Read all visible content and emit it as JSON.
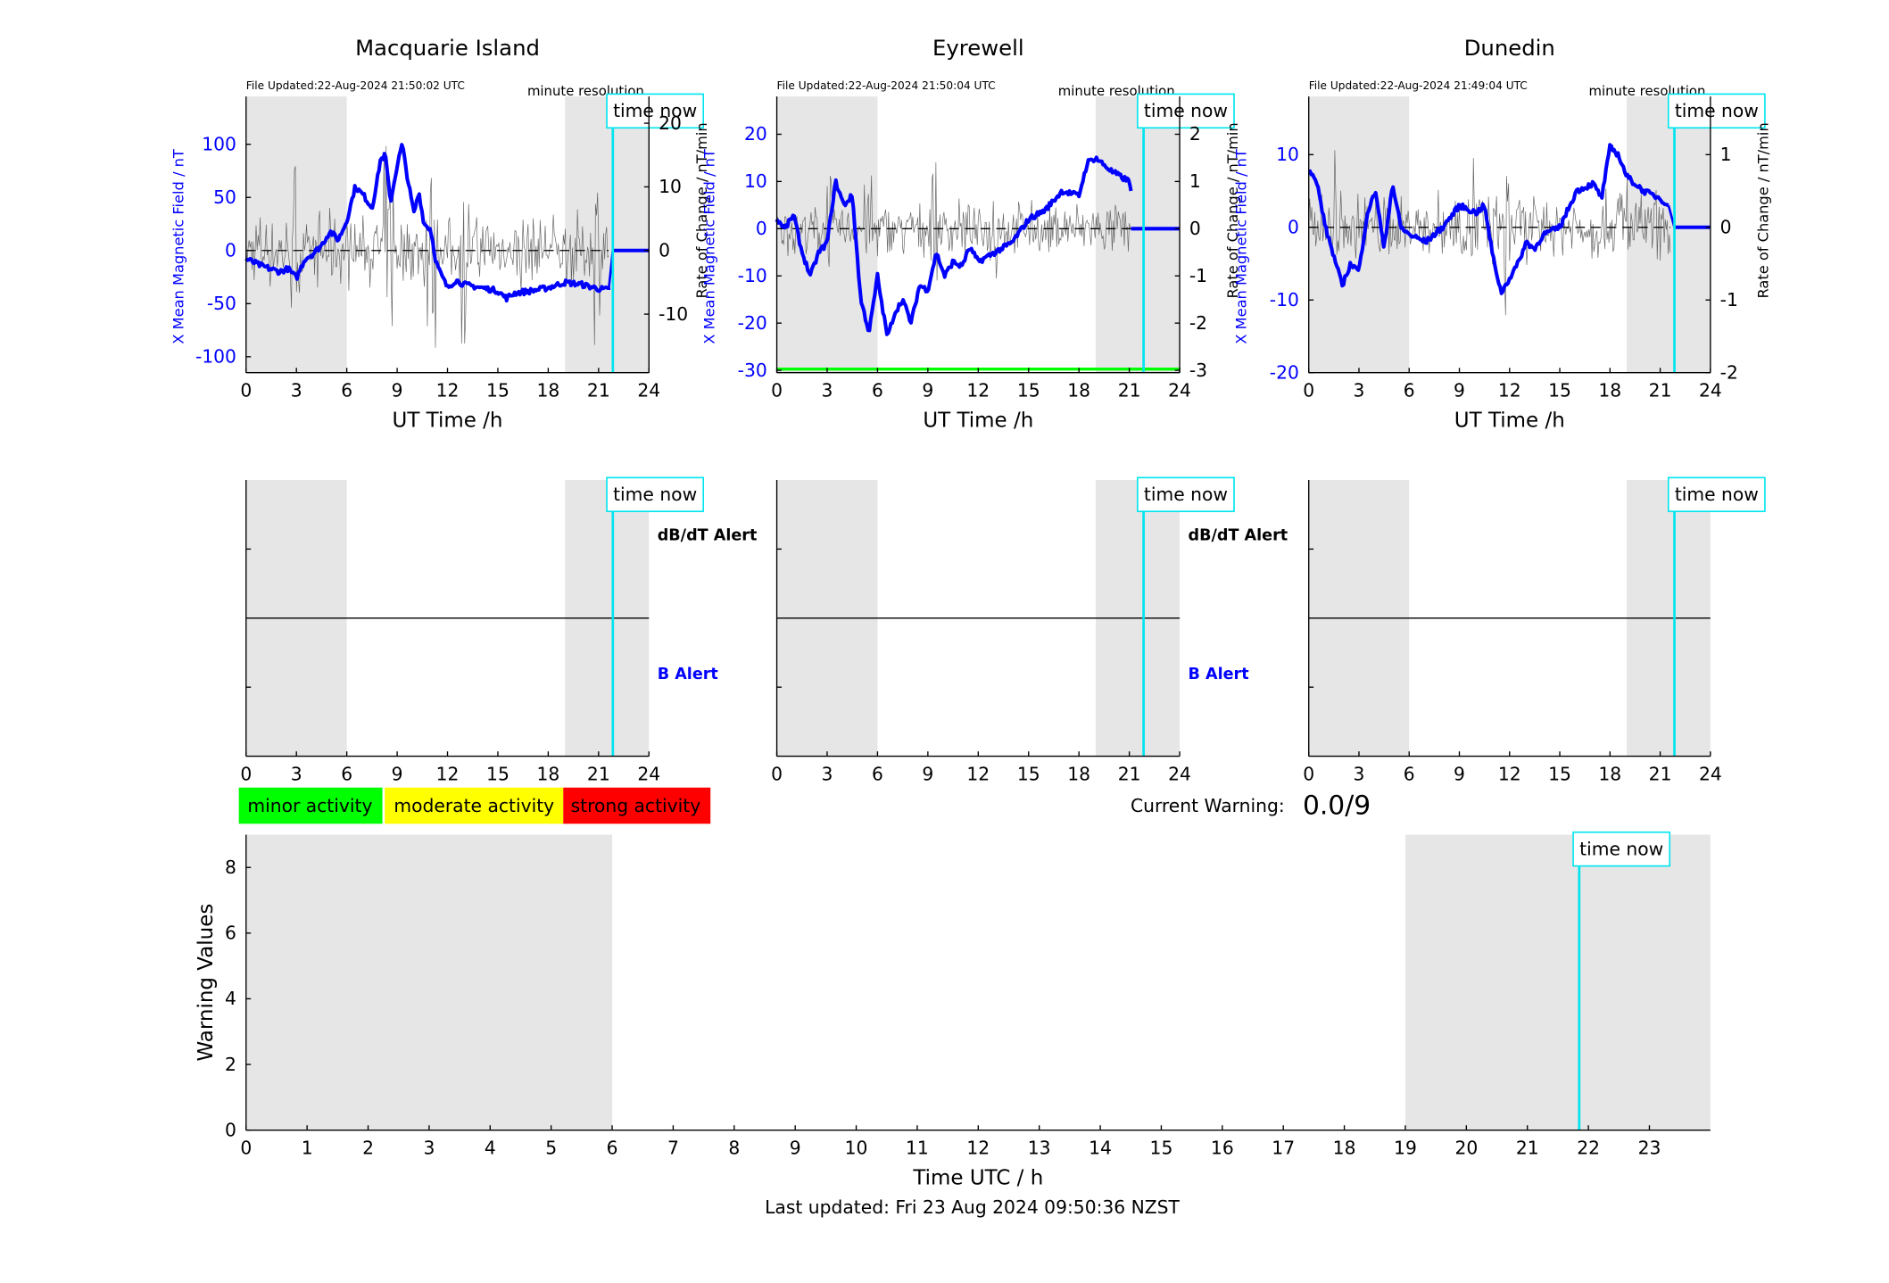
{
  "colors": {
    "field": "#0000ff",
    "rate": "#000000",
    "night": "#e6e6e6",
    "time_now": "#00e5ee",
    "minor": "#00ff00",
    "moderate": "#ffff00",
    "strong": "#ff0000"
  },
  "labels": {
    "minute_resolution": "minute resolution",
    "time_now": "time now",
    "ut_time": "UT Time /h",
    "field_axis": "X Mean Magnetic Field / nT",
    "rate_axis": "Rate of Change / nT/min",
    "dbdt_alert": "dB/dT Alert",
    "b_alert": "B Alert"
  },
  "legend": [
    "minor activity",
    "moderate activity",
    "strong activity"
  ],
  "current_warning": {
    "label": "Current Warning:",
    "value": "0.0/9"
  },
  "last_updated": "Last updated: Fri 23 Aug 2024 09:50:36 NZST",
  "chart_data": [
    {
      "type": "line",
      "title": "Macquarie Island",
      "file_updated": "File Updated:22-Aug-2024 21:50:02 UTC",
      "xlabel": "UT Time /h",
      "xlim": [
        0,
        24
      ],
      "xticks": [
        0,
        3,
        6,
        9,
        12,
        15,
        18,
        21,
        24
      ],
      "ylim": [
        -115,
        145
      ],
      "yticks": [
        -100,
        -50,
        0,
        50,
        100
      ],
      "y2lim": [
        -19.2,
        24.2
      ],
      "y2ticks": [
        -10,
        0,
        10,
        20
      ],
      "night_bands": [
        [
          0,
          6
        ],
        [
          19,
          24
        ]
      ],
      "time_now": 21.85,
      "series": [
        {
          "axis": "left",
          "data_end": 21.85,
          "flat_value": 0,
          "x": [
            0,
            1,
            2,
            2.5,
            3,
            3.5,
            4,
            4.5,
            5,
            5.5,
            6,
            6.5,
            7,
            7.5,
            7.8,
            8,
            8.3,
            8.6,
            9,
            9.3,
            9.6,
            10,
            10.3,
            10.6,
            11,
            11.3,
            11.6,
            12,
            12.5,
            13,
            14,
            15,
            15.5,
            16,
            17,
            18,
            19,
            20,
            21,
            21.6
          ],
          "y": [
            -8,
            -15,
            -20,
            -17,
            -26,
            -8,
            -3,
            5,
            18,
            10,
            28,
            60,
            52,
            40,
            65,
            85,
            90,
            45,
            80,
            100,
            70,
            35,
            55,
            25,
            20,
            -10,
            -22,
            -35,
            -28,
            -32,
            -35,
            -38,
            -45,
            -40,
            -38,
            -35,
            -30,
            -32,
            -36,
            -37
          ]
        },
        {
          "axis": "right",
          "data_end": 21.6,
          "amplitude": 5.5,
          "noise": [
            3,
            8.5,
            11,
            13,
            21
          ],
          "x": [
            0,
            3,
            6,
            7,
            8,
            9,
            10,
            11,
            12,
            15,
            18,
            21.6
          ],
          "y": [
            0,
            0,
            0,
            0,
            0,
            0,
            0,
            0,
            0,
            0,
            0,
            0
          ]
        }
      ]
    },
    {
      "type": "line",
      "title": "Eyrewell",
      "file_updated": "File Updated:22-Aug-2024 21:50:04 UTC",
      "xlabel": "UT Time /h",
      "xlim": [
        0,
        24
      ],
      "xticks": [
        0,
        3,
        6,
        9,
        12,
        15,
        18,
        21,
        24
      ],
      "ylim": [
        -30.5,
        28
      ],
      "yticks": [
        -30,
        -20,
        -10,
        0,
        10,
        20
      ],
      "y2lim": [
        -3.05,
        2.8
      ],
      "y2ticks": [
        -3,
        -2,
        -1,
        0,
        1,
        2
      ],
      "night_bands": [
        [
          0,
          6
        ],
        [
          19,
          24
        ]
      ],
      "time_now": 21.85,
      "threshold": {
        "value": -30,
        "color": "#00ff00"
      },
      "series": [
        {
          "axis": "left",
          "data_end": 21.1,
          "flat_value": 0,
          "x": [
            0,
            0.5,
            1,
            1.5,
            2,
            2.5,
            3,
            3.5,
            4,
            4.5,
            5,
            5.5,
            6,
            6.3,
            6.6,
            7,
            7.5,
            8,
            8.5,
            9,
            9.5,
            10,
            10.5,
            11,
            11.5,
            12,
            13,
            14,
            15,
            16,
            17,
            18,
            18.5,
            19,
            20,
            21,
            21.1
          ],
          "y": [
            2,
            0,
            3,
            -5,
            -10,
            -5,
            -3,
            10,
            5,
            7,
            -15,
            -22,
            -10,
            -17,
            -23,
            -18,
            -15,
            -20,
            -12,
            -13,
            -5,
            -10,
            -7,
            -8,
            -4,
            -7,
            -5,
            -3,
            2,
            4,
            8,
            7,
            14,
            15,
            12,
            10,
            8
          ]
        },
        {
          "axis": "right",
          "data_end": 21.1,
          "amplitude": 0.55,
          "noise": [
            3,
            5.5,
            9.3,
            13
          ],
          "x": [
            0,
            3,
            6,
            9,
            12,
            15,
            18,
            21.1
          ],
          "y": [
            0,
            0,
            0,
            0,
            0,
            0,
            0,
            0
          ]
        }
      ]
    },
    {
      "type": "line",
      "title": "Dunedin",
      "file_updated": "File Updated:22-Aug-2024 21:49:04 UTC",
      "xlabel": "UT Time /h",
      "xlim": [
        0,
        24
      ],
      "xticks": [
        0,
        3,
        6,
        9,
        12,
        15,
        18,
        21,
        24
      ],
      "ylim": [
        -20,
        18
      ],
      "yticks": [
        -20,
        -10,
        0,
        10
      ],
      "y2lim": [
        -2,
        1.8
      ],
      "y2ticks": [
        -2,
        -1,
        0,
        1
      ],
      "night_bands": [
        [
          0,
          6
        ],
        [
          19,
          24
        ]
      ],
      "time_now": 21.85,
      "series": [
        {
          "axis": "left",
          "data_end": 21.85,
          "flat_value": 0,
          "x": [
            0,
            0.5,
            1,
            1.5,
            2,
            2.5,
            3,
            3.5,
            4,
            4.5,
            5,
            5.5,
            6,
            7,
            8,
            9,
            10,
            10.5,
            11,
            11.5,
            12,
            12.5,
            13,
            13.5,
            14,
            15,
            16,
            17,
            17.5,
            18,
            18.5,
            19,
            20,
            21,
            21.5
          ],
          "y": [
            8,
            6,
            0,
            -4,
            -8,
            -5,
            -6,
            2,
            5,
            -3,
            6,
            0,
            -1,
            -2,
            0,
            3,
            2,
            3,
            -4,
            -9,
            -7,
            -5,
            -2,
            -3,
            -1,
            0,
            5,
            6,
            4,
            11,
            10,
            7,
            5,
            4,
            3
          ]
        },
        {
          "axis": "right",
          "data_end": 21.6,
          "amplitude": 0.45,
          "noise": [
            1.6,
            10,
            12,
            18.8
          ],
          "x": [
            0,
            3,
            6,
            9,
            12,
            15,
            18,
            21.6
          ],
          "y": [
            0,
            0,
            0,
            0,
            0,
            0,
            0,
            0
          ]
        }
      ]
    },
    {
      "type": "line",
      "title": "",
      "xlim": [
        0,
        24
      ],
      "xticks": [
        0,
        3,
        6,
        9,
        12,
        15,
        18,
        21,
        24
      ],
      "night_bands": [
        [
          0,
          6
        ],
        [
          19,
          24
        ]
      ],
      "time_now": 21.85,
      "midline": true,
      "alert_labels": true,
      "series": []
    },
    {
      "type": "line",
      "title": "",
      "xlim": [
        0,
        24
      ],
      "xticks": [
        0,
        3,
        6,
        9,
        12,
        15,
        18,
        21,
        24
      ],
      "night_bands": [
        [
          0,
          6
        ],
        [
          19,
          24
        ]
      ],
      "time_now": 21.85,
      "midline": true,
      "alert_labels": true,
      "series": []
    },
    {
      "type": "line",
      "title": "",
      "xlim": [
        0,
        24
      ],
      "xticks": [
        0,
        3,
        6,
        9,
        12,
        15,
        18,
        21,
        24
      ],
      "night_bands": [
        [
          0,
          6
        ],
        [
          19,
          24
        ]
      ],
      "time_now": 21.85,
      "midline": true,
      "alert_labels": false,
      "series": []
    },
    {
      "type": "bar",
      "title": "",
      "xlabel": "Time UTC / h",
      "ylabel": "Warning Values",
      "xlim": [
        0,
        24
      ],
      "xticks": [
        0,
        1,
        2,
        3,
        4,
        5,
        6,
        7,
        8,
        9,
        10,
        11,
        12,
        13,
        14,
        15,
        16,
        17,
        18,
        19,
        20,
        21,
        22,
        23
      ],
      "ylim": [
        0,
        9
      ],
      "yticks": [
        0,
        2,
        4,
        6,
        8
      ],
      "night_bands": [
        [
          0,
          6
        ],
        [
          19,
          24
        ]
      ],
      "time_now": 21.85,
      "series": []
    }
  ]
}
